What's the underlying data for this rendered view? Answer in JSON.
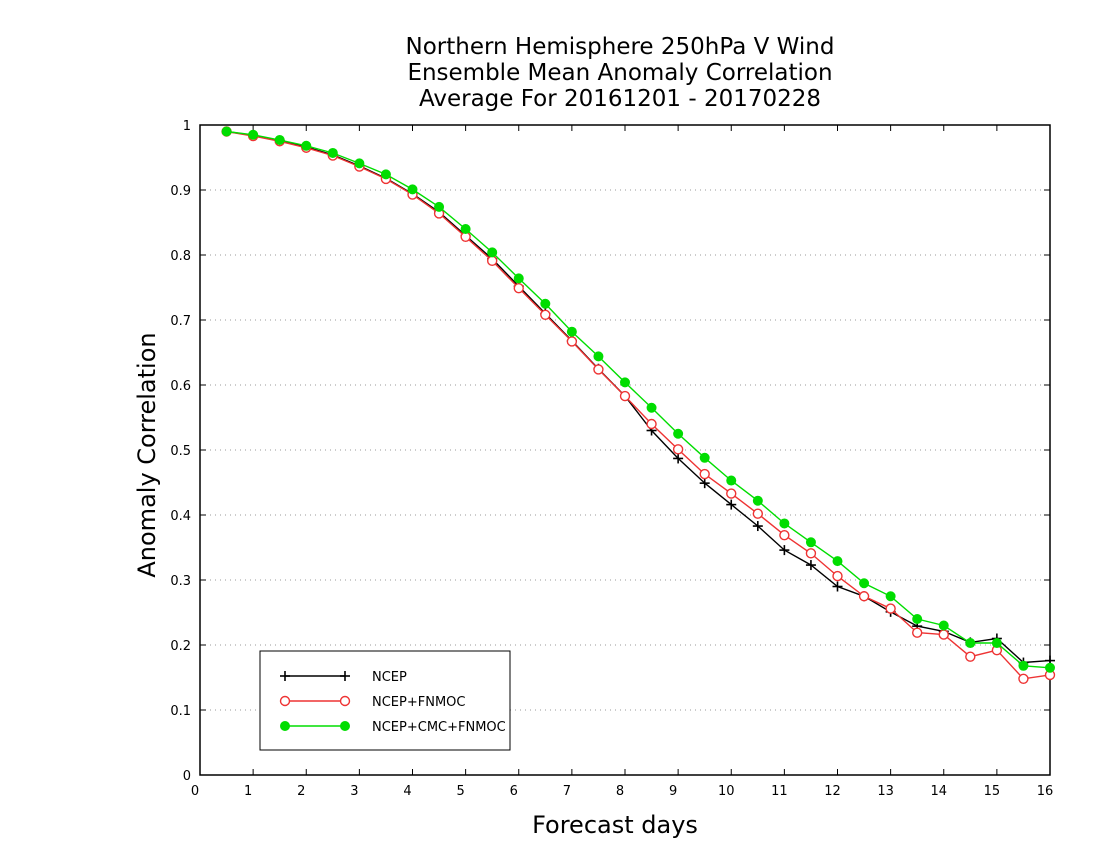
{
  "chart_data": {
    "type": "line",
    "title_lines": [
      "Northern Hemisphere 250hPa V Wind",
      "Ensemble Mean Anomaly Correlation",
      "Average For 20161201 - 20170228"
    ],
    "xlabel": "Forecast days",
    "ylabel": "Anomaly Correlation",
    "xlim": [
      0,
      16
    ],
    "ylim": [
      0,
      1
    ],
    "xticks": [
      "0",
      "1",
      "2",
      "3",
      "4",
      "5",
      "6",
      "7",
      "8",
      "9",
      "10",
      "11",
      "12",
      "13",
      "14",
      "15",
      "16"
    ],
    "yticks": [
      "0",
      "0.1",
      "0.2",
      "0.3",
      "0.4",
      "0.5",
      "0.6",
      "0.7",
      "0.8",
      "0.9",
      "1"
    ],
    "grid": "horizontal dotted",
    "legend_position": "bottom-left",
    "x": [
      0.5,
      1,
      1.5,
      2,
      2.5,
      3,
      3.5,
      4,
      4.5,
      5,
      5.5,
      6,
      6.5,
      7,
      7.5,
      8,
      8.5,
      9,
      9.5,
      10,
      10.5,
      11,
      11.5,
      12,
      12.5,
      13,
      13.5,
      14,
      14.5,
      15,
      15.5,
      16
    ],
    "series": [
      {
        "name": "NCEP",
        "color": "#000000",
        "marker": "plus",
        "values": [
          0.99,
          0.984,
          0.976,
          0.966,
          0.954,
          0.937,
          0.918,
          0.894,
          0.866,
          0.83,
          0.794,
          0.752,
          0.71,
          0.668,
          0.625,
          0.583,
          0.53,
          0.487,
          0.449,
          0.416,
          0.383,
          0.346,
          0.323,
          0.29,
          0.275,
          0.251,
          0.229,
          0.221,
          0.204,
          0.21,
          0.173,
          0.176
        ]
      },
      {
        "name": "NCEP+FNMOC",
        "color": "#ee3333",
        "marker": "open-circle",
        "values": [
          0.99,
          0.983,
          0.975,
          0.965,
          0.953,
          0.936,
          0.917,
          0.893,
          0.864,
          0.828,
          0.791,
          0.749,
          0.708,
          0.667,
          0.624,
          0.583,
          0.54,
          0.501,
          0.463,
          0.433,
          0.402,
          0.369,
          0.341,
          0.306,
          0.275,
          0.256,
          0.219,
          0.216,
          0.182,
          0.192,
          0.148,
          0.154
        ]
      },
      {
        "name": "NCEP+CMC+FNMOC",
        "color": "#00dd00",
        "marker": "filled-circle",
        "values": [
          0.99,
          0.985,
          0.977,
          0.968,
          0.957,
          0.941,
          0.924,
          0.901,
          0.874,
          0.84,
          0.804,
          0.764,
          0.725,
          0.682,
          0.644,
          0.604,
          0.565,
          0.525,
          0.488,
          0.453,
          0.422,
          0.387,
          0.358,
          0.329,
          0.295,
          0.275,
          0.24,
          0.23,
          0.203,
          0.203,
          0.168,
          0.165
        ]
      }
    ]
  }
}
